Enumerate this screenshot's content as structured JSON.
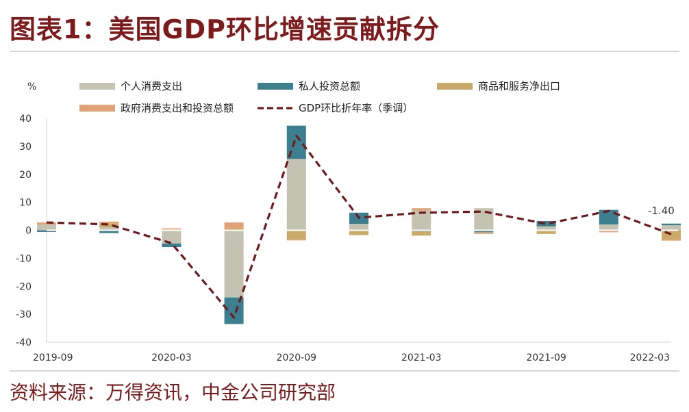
{
  "title": "图表1：美国GDP环比增速贡献拆分",
  "source": "资料来源：万得资讯，中金公司研究部",
  "chart_data": {
    "type": "bar",
    "stacked": true,
    "ylabel": "%",
    "ylim": [
      -40,
      40
    ],
    "yticks": [
      40,
      30,
      20,
      10,
      0,
      -10,
      -20,
      -30,
      -40
    ],
    "x": [
      "2019-09",
      "2019-12",
      "2020-03",
      "2020-06",
      "2020-09",
      "2020-12",
      "2021-03",
      "2021-06",
      "2021-09",
      "2021-12",
      "2022-03"
    ],
    "xtick_labels": [
      "2019-09",
      "2020-03",
      "2020-09",
      "2021-03",
      "2021-09",
      "2022-03"
    ],
    "series": [
      {
        "name": "个人消费支出",
        "type": "bar",
        "color": "#c4c3b2",
        "values": [
          2.1,
          1.1,
          -4.7,
          -24.0,
          25.5,
          2.3,
          7.1,
          7.9,
          1.4,
          2.1,
          1.8
        ]
      },
      {
        "name": "私人投资总额",
        "type": "bar",
        "color": "#3c8090",
        "values": [
          -0.6,
          -1.0,
          -1.3,
          -9.5,
          11.9,
          4.0,
          -0.4,
          -0.7,
          1.9,
          5.2,
          0.6
        ]
      },
      {
        "name": "商品和服务净出口",
        "type": "bar",
        "color": "#c9aa68",
        "values": [
          0.1,
          1.4,
          0.3,
          0.6,
          -3.2,
          -1.6,
          -1.5,
          -0.2,
          -1.3,
          -0.2,
          -3.2
        ]
      },
      {
        "name": "政府消费支出和投资总额",
        "type": "bar",
        "color": "#e3a276",
        "values": [
          0.6,
          0.6,
          0.4,
          2.2,
          -0.4,
          -0.1,
          0.8,
          -0.4,
          0.0,
          -0.5,
          -0.5
        ]
      },
      {
        "name": "GDP环比折年率（季调）",
        "type": "line",
        "color": "#6e1a1e",
        "values": [
          2.8,
          2.1,
          -4.6,
          -31.2,
          33.8,
          4.5,
          6.3,
          6.7,
          2.3,
          6.9,
          -1.4
        ]
      }
    ],
    "annotations": [
      {
        "x": "2022-03",
        "text": "-1.40"
      }
    ],
    "legend": "top"
  }
}
